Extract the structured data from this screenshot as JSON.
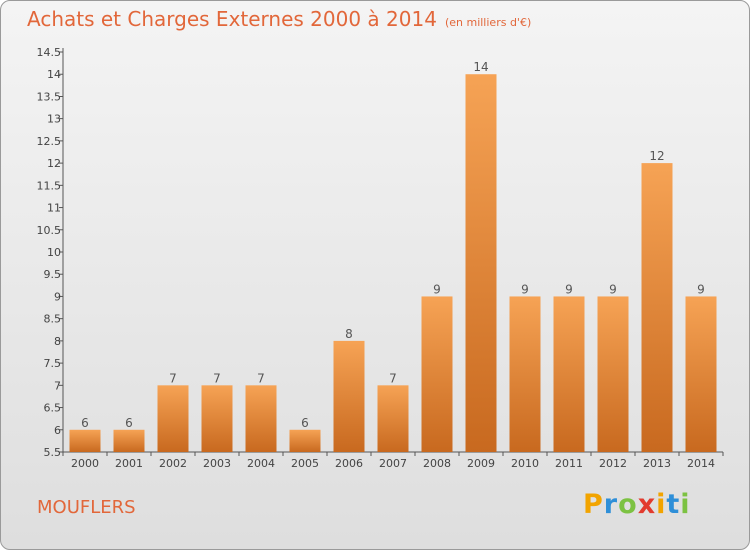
{
  "title": "Achats et Charges Externes 2000 à 2014",
  "unit_note": "(en milliers d'€)",
  "place_name": "MOUFLERS",
  "logo": {
    "letters": [
      "P",
      "r",
      "o",
      "x",
      "i",
      "t",
      "i"
    ],
    "colors": [
      "#f2a400",
      "#2e8fd8",
      "#7cc242",
      "#e23b2e",
      "#f2a400",
      "#2e8fd8",
      "#7cc242"
    ]
  },
  "colors": {
    "accent": "#e2673a",
    "bar_top": "#f6a355",
    "bar_bottom": "#c8691f"
  },
  "chart_data": {
    "type": "bar",
    "title": "Achats et Charges Externes 2000 à 2014",
    "subtitle": "(en milliers d'€)",
    "categories": [
      "2000",
      "2001",
      "2002",
      "2003",
      "2004",
      "2005",
      "2006",
      "2007",
      "2008",
      "2009",
      "2010",
      "2011",
      "2012",
      "2013",
      "2014"
    ],
    "values": [
      6,
      6,
      7,
      7,
      7,
      6,
      8,
      7,
      9,
      14,
      9,
      9,
      9,
      12,
      9
    ],
    "data_labels": [
      "6",
      "6",
      "7",
      "7",
      "7",
      "6",
      "8",
      "7",
      "9",
      "14",
      "9",
      "9",
      "9",
      "12",
      "9"
    ],
    "ylim": [
      5.5,
      14.5
    ],
    "yticks": [
      5.5,
      6,
      6.5,
      7,
      7.5,
      8,
      8.5,
      9,
      9.5,
      10,
      10.5,
      11,
      11.5,
      12,
      12.5,
      13,
      13.5,
      14,
      14.5
    ],
    "ytick_labels": [
      "5.5",
      "6",
      "6.5",
      "7",
      "7.5",
      "8",
      "8.5",
      "9",
      "9.5",
      "10",
      "10.5",
      "11",
      "11.5",
      "12",
      "12.5",
      "13",
      "13.5",
      "14",
      "14.5"
    ],
    "grid": false,
    "legend": "none"
  }
}
